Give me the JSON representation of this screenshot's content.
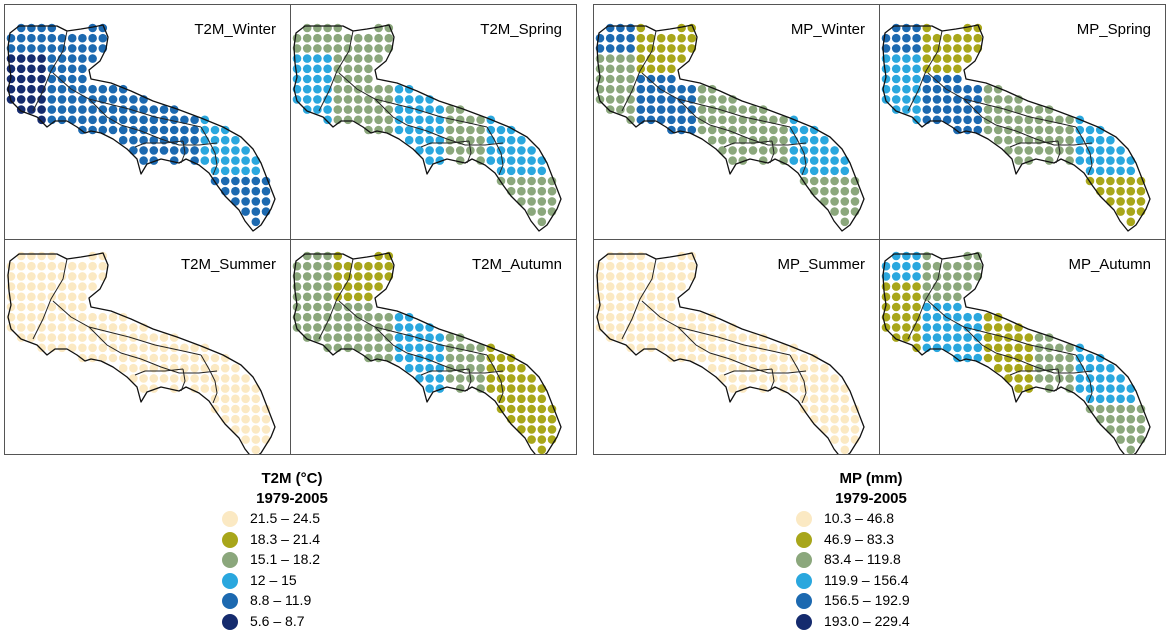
{
  "groups": [
    {
      "id": "t2m",
      "panels": [
        {
          "title": "T2M_Winter",
          "scheme": [
            6,
            5,
            5,
            5,
            5,
            4,
            5
          ]
        },
        {
          "title": "T2M_Spring",
          "scheme": [
            4,
            3,
            3,
            4,
            3,
            4,
            3
          ]
        },
        {
          "title": "T2M_Summer",
          "scheme": [
            1,
            1,
            1,
            1,
            1,
            1,
            1
          ]
        },
        {
          "title": "T2M_Autumn",
          "scheme": [
            3,
            2,
            3,
            4,
            3,
            2,
            2
          ]
        }
      ],
      "legend": {
        "title": "T2M (°C)",
        "period": "1979-2005",
        "items": [
          {
            "label": "21.5 – 24.5",
            "color": "#FBE9C3"
          },
          {
            "label": "18.3 – 21.4",
            "color": "#A8A61A"
          },
          {
            "label": "15.1 – 18.2",
            "color": "#8BA77C"
          },
          {
            "label": "12 – 15",
            "color": "#2AA7DE"
          },
          {
            "label": "8.8 – 11.9",
            "color": "#1C69B0"
          },
          {
            "label": "5.6 – 8.7",
            "color": "#152B6E"
          }
        ]
      }
    },
    {
      "id": "mp",
      "panels": [
        {
          "title": "MP_Winter",
          "scheme": [
            3,
            2,
            5,
            3,
            3,
            4,
            3
          ]
        },
        {
          "title": "MP_Spring",
          "scheme": [
            4,
            2,
            5,
            3,
            3,
            4,
            2
          ]
        },
        {
          "title": "MP_Summer",
          "scheme": [
            1,
            1,
            1,
            1,
            1,
            1,
            1
          ]
        },
        {
          "title": "MP_Autumn",
          "scheme": [
            2,
            3,
            4,
            2,
            3,
            4,
            3
          ]
        }
      ],
      "legend": {
        "title": "MP (mm)",
        "period": "1979-2005",
        "items": [
          {
            "label": "10.3 – 46.8",
            "color": "#FBE9C3"
          },
          {
            "label": "46.9 – 83.3",
            "color": "#A8A61A"
          },
          {
            "label": "83.4 – 119.8",
            "color": "#8BA77C"
          },
          {
            "label": "119.9 – 156.4",
            "color": "#2AA7DE"
          },
          {
            "label": "156.5 – 192.9",
            "color": "#1C69B0"
          },
          {
            "label": "193.0 – 229.4",
            "color": "#152B6E"
          }
        ]
      }
    }
  ]
}
